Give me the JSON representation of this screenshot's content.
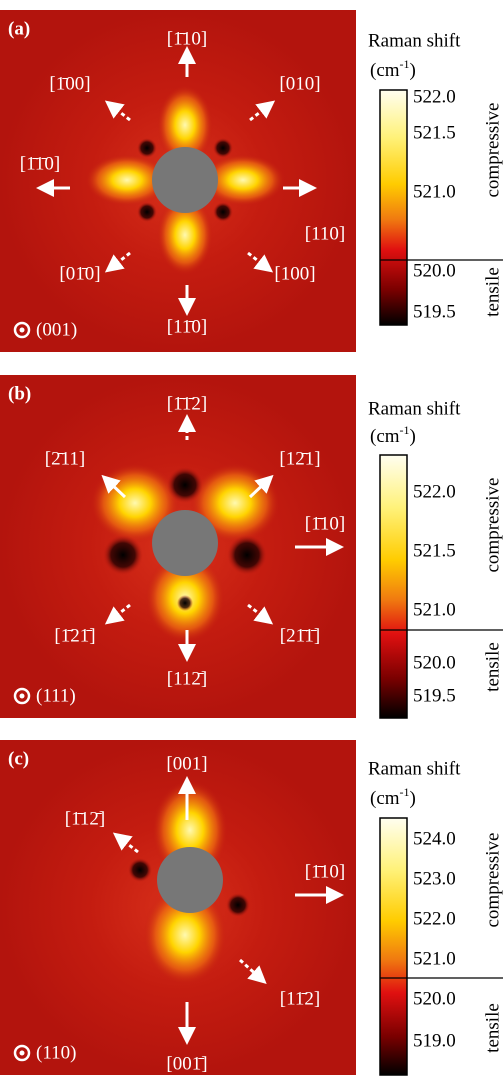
{
  "panels": [
    {
      "label": "(a)",
      "plane": "(001)",
      "directions": [
        "[1̄10]",
        "[1̄00]",
        "[010]",
        "[1̄1̄0]",
        "[110]",
        "[01̄0]",
        "[100]",
        "[11̄0]"
      ],
      "colorbar": {
        "title": "Raman shift",
        "unit_base": "(cm",
        "unit_power": "-1",
        "unit_end": ")",
        "upper_label": "compressive",
        "lower_label": "tensile",
        "ticks": [
          "522.0",
          "521.5",
          "521.0",
          "520.0",
          "519.5"
        ]
      }
    },
    {
      "label": "(b)",
      "plane": "(111)",
      "directions": [
        "[1̄1̄2]",
        "[2̄11]",
        "[12̄1]",
        "[1̄10]",
        "[1̄21̄]",
        "[21̄1̄]",
        "[112̄]"
      ],
      "colorbar": {
        "title": "Raman shift",
        "unit_base": "(cm",
        "unit_power": "-1",
        "unit_end": ")",
        "upper_label": "compressive",
        "lower_label": "tensile",
        "ticks": [
          "522.0",
          "521.5",
          "521.0",
          "520.0",
          "519.5"
        ]
      }
    },
    {
      "label": "(c)",
      "plane": "(110)",
      "directions": [
        "[001]",
        "[1̄12̄]",
        "[1̄10]",
        "[11̄2]",
        "[001̄]"
      ],
      "colorbar": {
        "title": "Raman shift",
        "unit_base": "(cm",
        "unit_power": "-1",
        "unit_end": ")",
        "upper_label": "compressive",
        "lower_label": "tensile",
        "ticks": [
          "524.0",
          "523.0",
          "522.0",
          "521.0",
          "520.0",
          "519.0"
        ]
      }
    }
  ]
}
